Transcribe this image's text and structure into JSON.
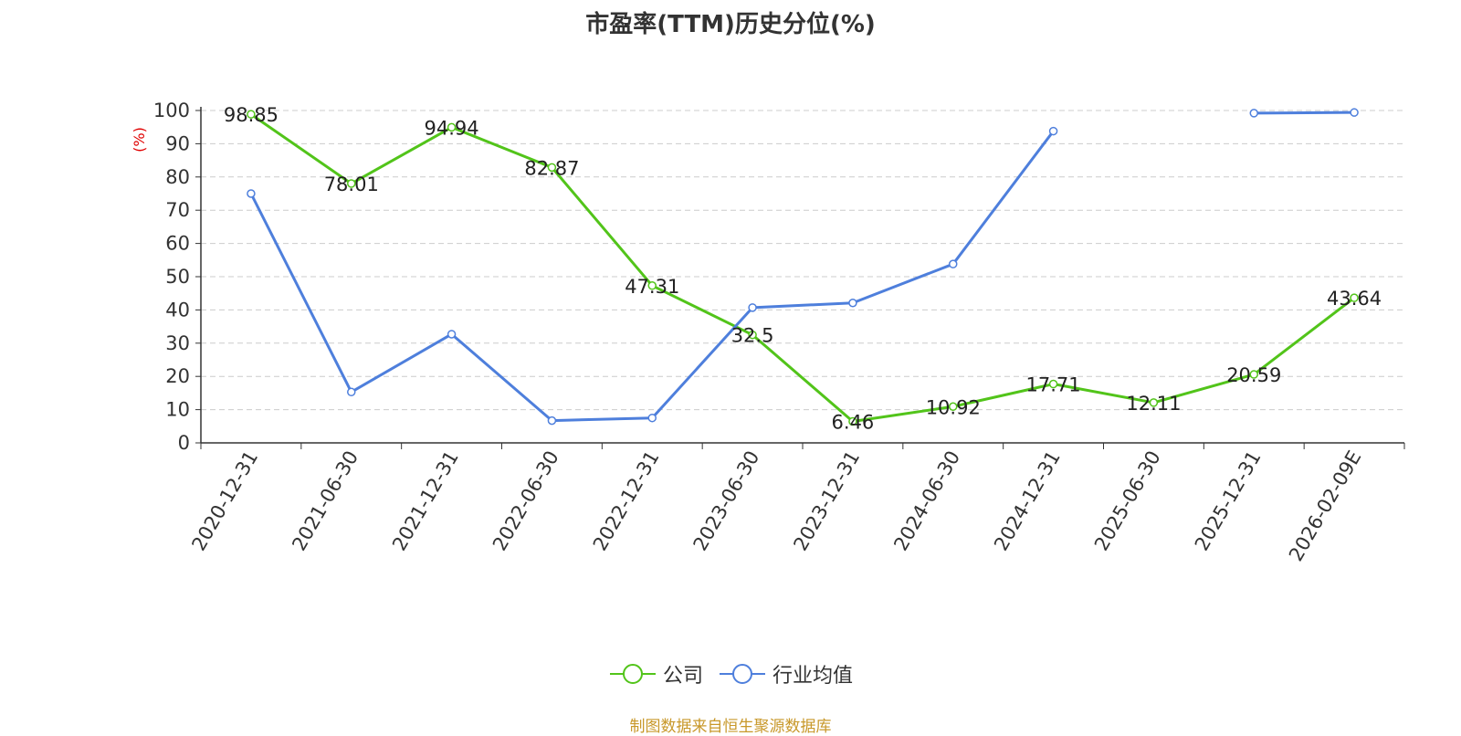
{
  "chart_data": {
    "type": "line",
    "title": "市盈率(TTM)历史分位(%)",
    "ylabel": "(%)",
    "xlabel": "",
    "ylim": [
      0,
      100
    ],
    "yticks": [
      0,
      10,
      20,
      30,
      40,
      50,
      60,
      70,
      80,
      90,
      100
    ],
    "grid": true,
    "legend_position": "bottom",
    "categories": [
      "2020-12-31",
      "2021-06-30",
      "2021-12-31",
      "2022-06-30",
      "2022-12-31",
      "2023-06-30",
      "2023-12-31",
      "2024-06-30",
      "2024-12-31",
      "2025-06-30",
      "2025-12-31",
      "2026-02-09E"
    ],
    "series": [
      {
        "name": "公司",
        "color": "#52c41a",
        "values": [
          98.85,
          78.01,
          94.94,
          82.87,
          47.31,
          32.5,
          6.46,
          10.92,
          17.71,
          12.11,
          20.59,
          43.64
        ],
        "data_labels": [
          "98.85",
          "78.01",
          "94.94",
          "82.87",
          "47.31",
          "32.5",
          "6.46",
          "10.92",
          "17.71",
          "12.11",
          "20.59",
          "43.64"
        ]
      },
      {
        "name": "行业均值",
        "color": "#4e7fdc",
        "values": [
          75,
          15.3,
          32.7,
          6.7,
          7.5,
          40.7,
          42.1,
          53.8,
          93.8,
          null,
          99.2,
          99.4
        ]
      }
    ]
  },
  "source": "制图数据来自恒生聚源数据库"
}
